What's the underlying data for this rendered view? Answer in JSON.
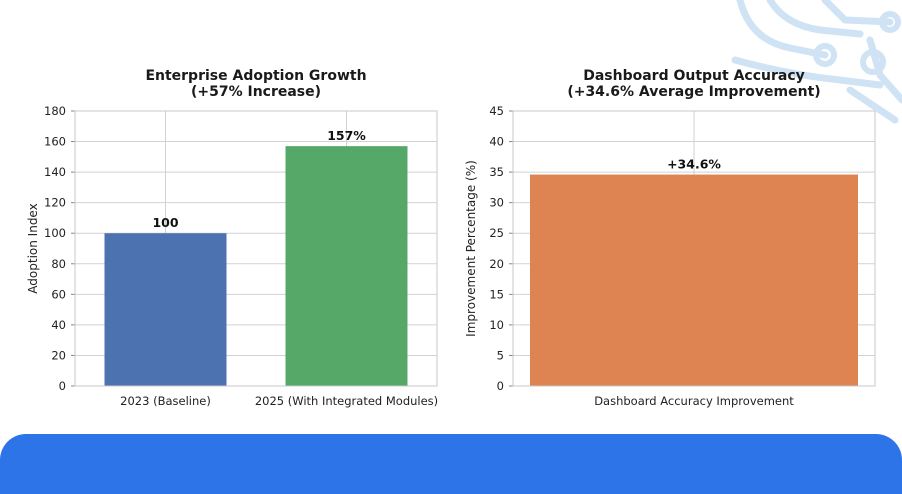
{
  "chart_data": [
    {
      "type": "bar",
      "title_line1": "Enterprise Adoption Growth",
      "title_line2": "(+57% Increase)",
      "xlabel": "",
      "ylabel": "Adoption Index",
      "ylim": [
        0,
        180
      ],
      "yticks": [
        0,
        20,
        40,
        60,
        80,
        100,
        120,
        140,
        160,
        180
      ],
      "categories": [
        "2023 (Baseline)",
        "2025 (With Integrated Modules)"
      ],
      "values": [
        100,
        157
      ],
      "data_labels": [
        "100",
        "157%"
      ],
      "colors": [
        "#4c72b0",
        "#55a868"
      ],
      "grid": true
    },
    {
      "type": "bar",
      "title_line1": "Dashboard Output Accuracy",
      "title_line2": "(+34.6% Average Improvement)",
      "xlabel": "",
      "ylabel": "Improvement Percentage (%)",
      "ylim": [
        0,
        45
      ],
      "yticks": [
        0,
        5,
        10,
        15,
        20,
        25,
        30,
        35,
        40,
        45
      ],
      "categories": [
        "Dashboard Accuracy Improvement"
      ],
      "values": [
        34.6
      ],
      "data_labels": [
        "+34.6%"
      ],
      "colors": [
        "#dd8452"
      ],
      "grid": true
    }
  ],
  "decoration": {
    "accent_color": "#2d74e8",
    "circuit_color": "#cfe3f5"
  }
}
